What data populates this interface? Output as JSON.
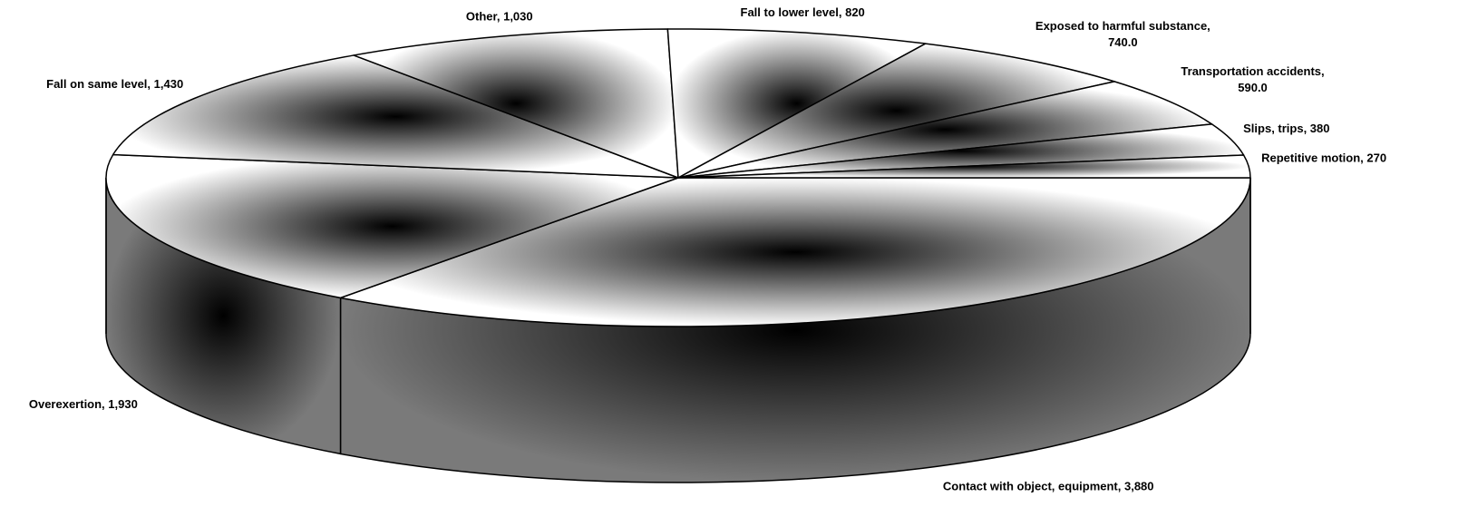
{
  "chart_data": {
    "type": "pie",
    "style": "3d",
    "title": "",
    "slices": [
      {
        "label": "Contact with object, equipment, 3,880",
        "category": "Contact with object, equipment",
        "value": 3880
      },
      {
        "label": "Overexertion, 1,930",
        "category": "Overexertion",
        "value": 1930
      },
      {
        "label": "Fall on same level, 1,430",
        "category": "Fall on same level",
        "value": 1430
      },
      {
        "label": "Other, 1,030",
        "category": "Other",
        "value": 1030
      },
      {
        "label": "Fall to lower level, 820",
        "category": "Fall to lower level",
        "value": 820
      },
      {
        "label": "Exposed to harmful substance,",
        "label_line2": "740.0",
        "category": "Exposed to harmful substance",
        "value": 740
      },
      {
        "label": "Transportation accidents,",
        "label_line2": "590.0",
        "category": "Transportation accidents",
        "value": 590
      },
      {
        "label": "Slips, trips, 380",
        "category": "Slips, trips",
        "value": 380
      },
      {
        "label": "Repetitive motion, 270",
        "category": "Repetitive motion",
        "value": 270
      }
    ],
    "colors": {
      "top_light": "#ffffff",
      "top_dark": "#000000",
      "side_light": "#7a7a7a",
      "side_dark": "#000000",
      "outline": "#000000"
    }
  }
}
